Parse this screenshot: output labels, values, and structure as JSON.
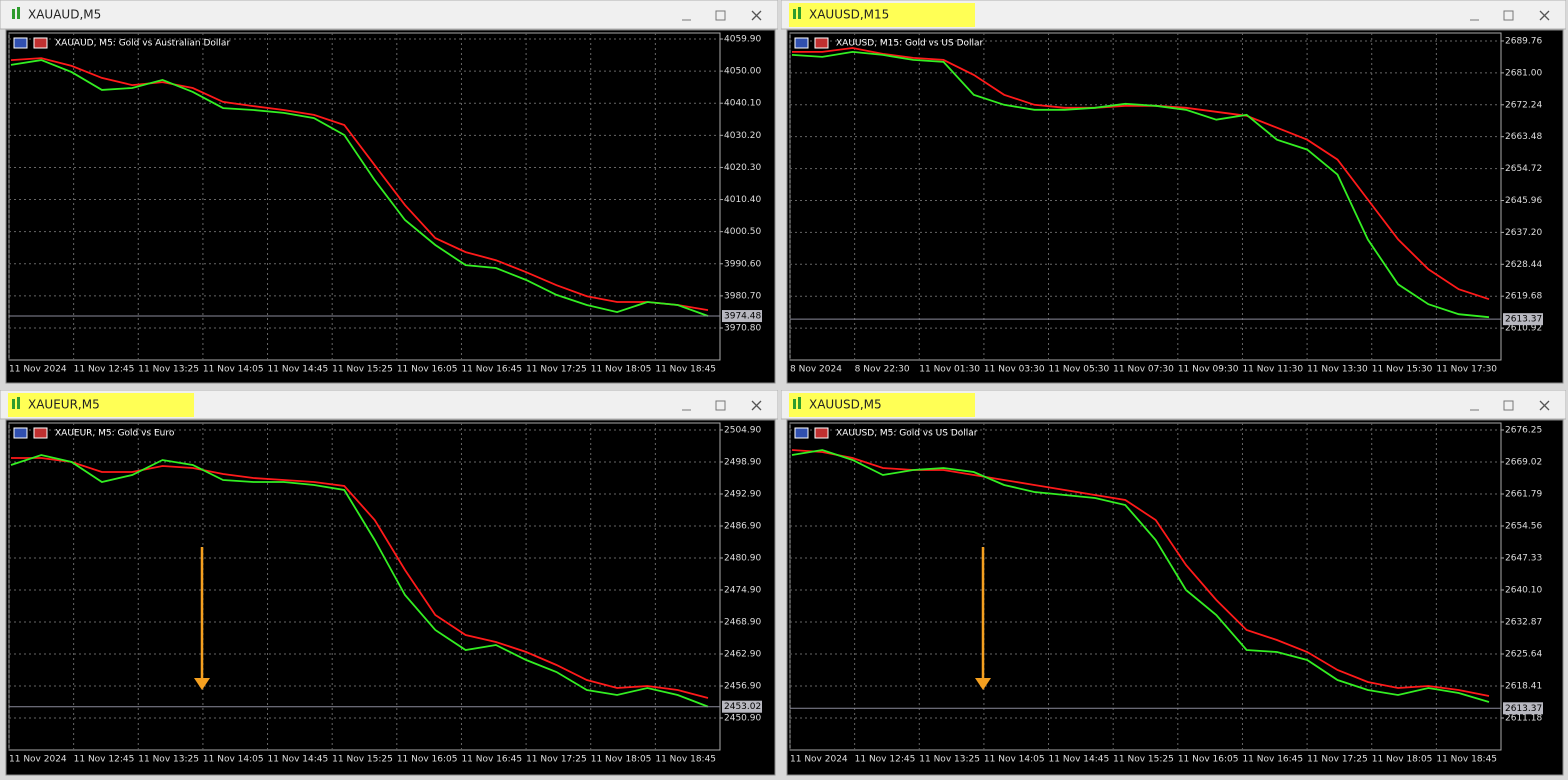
{
  "windows": [
    {
      "title": "XAUAUD,M5",
      "highlighted": false,
      "subtitle": "XAUAUD, M5:  Gold vs Australian Dollar",
      "ylim": [
        3960.93,
        4061.75
      ],
      "yticks": [
        {
          "value": 4059.9,
          "label": "4059.90"
        },
        {
          "value": 4050,
          "label": "4050.00"
        },
        {
          "value": 4040.1,
          "label": "4040.10"
        },
        {
          "value": 4030.2,
          "label": "4030.20"
        },
        {
          "value": 4020.3,
          "label": "4020.30"
        },
        {
          "value": 4010.4,
          "label": "4010.40"
        },
        {
          "value": 4000.5,
          "label": "4000.50"
        },
        {
          "value": 3990.6,
          "label": "3990.60"
        },
        {
          "value": 3980.7,
          "label": "3980.70"
        },
        {
          "value": 3970.8,
          "label": "3970.80"
        }
      ],
      "xticks": [
        "11 Nov 2024",
        "11 Nov 12:45",
        "11 Nov 13:25",
        "11 Nov 14:05",
        "11 Nov 14:45",
        "11 Nov 15:25",
        "11 Nov 16:05",
        "11 Nov 16:45",
        "11 Nov 17:25",
        "11 Nov 18:05",
        "11 Nov 18:45"
      ],
      "last_price": 3974.48,
      "price": [
        4051.9,
        4053.4,
        4049.7,
        4044.2,
        4044.8,
        4047.3,
        4043.6,
        4038.6,
        4038.0,
        4037.1,
        4035.5,
        4030.3,
        4016.4,
        4004.1,
        3996.4,
        3990.2,
        3989.3,
        3985.6,
        3981.0,
        3977.9,
        3975.7,
        3978.8,
        3977.9,
        3974.5
      ],
      "ma": [
        4053.4,
        4054.0,
        4051.6,
        4047.9,
        4045.7,
        4046.6,
        4044.8,
        4040.5,
        4039.2,
        4038.0,
        4036.5,
        4033.4,
        4021.0,
        4008.7,
        3998.5,
        3994.2,
        3991.7,
        3988.0,
        3984.0,
        3980.6,
        3978.8,
        3978.8,
        3977.9,
        3976.3
      ],
      "arrow": false
    },
    {
      "title": "XAUUSD,M15",
      "highlighted": true,
      "subtitle": "XAUUSD, M15:  Gold vs US Dollar",
      "ylim": [
        2602.16,
        2691.95
      ],
      "yticks": [
        {
          "value": 2689.76,
          "label": "2689.76"
        },
        {
          "value": 2681,
          "label": "2681.00"
        },
        {
          "value": 2672.24,
          "label": "2672.24"
        },
        {
          "value": 2663.48,
          "label": "2663.48"
        },
        {
          "value": 2654.72,
          "label": "2654.72"
        },
        {
          "value": 2645.96,
          "label": "2645.96"
        },
        {
          "value": 2637.2,
          "label": "2637.20"
        },
        {
          "value": 2628.44,
          "label": "2628.44"
        },
        {
          "value": 2619.68,
          "label": "2619.68"
        },
        {
          "value": 2610.92,
          "label": "2610.92"
        }
      ],
      "xticks": [
        "8 Nov 2024",
        "8 Nov 22:30",
        "11 Nov 01:30",
        "11 Nov 03:30",
        "11 Nov 05:30",
        "11 Nov 07:30",
        "11 Nov 09:30",
        "11 Nov 11:30",
        "11 Nov 13:30",
        "11 Nov 15:30",
        "11 Nov 17:30"
      ],
      "last_price": 2613.37,
      "price": [
        2685.93,
        2685.38,
        2686.75,
        2685.93,
        2684.56,
        2684.01,
        2674.97,
        2672.24,
        2670.87,
        2670.87,
        2671.42,
        2672.51,
        2671.96,
        2670.87,
        2668.13,
        2669.5,
        2662.65,
        2659.92,
        2653.07,
        2635.28,
        2622.95,
        2617.48,
        2614.74,
        2613.92
      ],
      "ma": [
        2686.75,
        2686.75,
        2687.84,
        2686.2,
        2685.11,
        2684.56,
        2680.45,
        2674.97,
        2672.24,
        2671.42,
        2671.42,
        2671.96,
        2671.96,
        2671.42,
        2670.32,
        2669.22,
        2665.94,
        2662.65,
        2657.18,
        2646.22,
        2635.28,
        2627.06,
        2621.59,
        2618.85
      ],
      "arrow": false
    },
    {
      "title": "XAUEUR,M5",
      "highlighted": true,
      "subtitle": "XAUEUR, M5:  Gold vs Euro",
      "ylim": [
        2444.9,
        2506.21
      ],
      "yticks": [
        {
          "value": 2504.9,
          "label": "2504.90"
        },
        {
          "value": 2498.9,
          "label": "2498.90"
        },
        {
          "value": 2492.9,
          "label": "2492.90"
        },
        {
          "value": 2486.9,
          "label": "2486.90"
        },
        {
          "value": 2480.9,
          "label": "2480.90"
        },
        {
          "value": 2474.9,
          "label": "2474.90"
        },
        {
          "value": 2468.9,
          "label": "2468.90"
        },
        {
          "value": 2462.9,
          "label": "2462.90"
        },
        {
          "value": 2456.9,
          "label": "2456.90"
        },
        {
          "value": 2450.9,
          "label": "2450.90"
        }
      ],
      "xticks": [
        "11 Nov 2024",
        "11 Nov 12:45",
        "11 Nov 13:25",
        "11 Nov 14:05",
        "11 Nov 14:45",
        "11 Nov 15:25",
        "11 Nov 16:05",
        "11 Nov 16:45",
        "11 Nov 17:25",
        "11 Nov 18:05",
        "11 Nov 18:45"
      ],
      "last_price": 2453.02,
      "price": [
        2498.34,
        2500.21,
        2498.9,
        2495.15,
        2496.46,
        2499.28,
        2498.34,
        2495.53,
        2495.15,
        2495.15,
        2494.59,
        2493.65,
        2484.28,
        2473.96,
        2467.4,
        2463.65,
        2464.59,
        2461.78,
        2459.53,
        2456.15,
        2455.21,
        2456.53,
        2455.21,
        2453.03
      ],
      "ma": [
        2499.65,
        2499.65,
        2498.9,
        2497.03,
        2497.03,
        2498.15,
        2497.78,
        2496.65,
        2495.9,
        2495.53,
        2495.15,
        2494.4,
        2488.03,
        2478.65,
        2470.21,
        2466.46,
        2465.15,
        2463.28,
        2460.84,
        2458.03,
        2456.53,
        2456.9,
        2456.15,
        2454.65
      ],
      "arrow": true
    },
    {
      "title": "XAUUSD,M5",
      "highlighted": true,
      "subtitle": "XAUUSD, M5:  Gold vs US Dollar",
      "ylim": [
        2603.95,
        2677.83
      ],
      "yticks": [
        {
          "value": 2676.25,
          "label": "2676.25"
        },
        {
          "value": 2669.02,
          "label": "2669.02"
        },
        {
          "value": 2661.79,
          "label": "2661.79"
        },
        {
          "value": 2654.56,
          "label": "2654.56"
        },
        {
          "value": 2647.33,
          "label": "2647.33"
        },
        {
          "value": 2640.1,
          "label": "2640.10"
        },
        {
          "value": 2632.87,
          "label": "2632.87"
        },
        {
          "value": 2625.64,
          "label": "2625.64"
        },
        {
          "value": 2618.41,
          "label": "2618.41"
        },
        {
          "value": 2611.18,
          "label": "2611.18"
        }
      ],
      "xticks": [
        "11 Nov 2024",
        "11 Nov 12:45",
        "11 Nov 13:25",
        "11 Nov 14:05",
        "11 Nov 14:45",
        "11 Nov 15:25",
        "11 Nov 16:05",
        "11 Nov 16:45",
        "11 Nov 17:25",
        "11 Nov 18:05",
        "11 Nov 18:45"
      ],
      "last_price": 2613.37,
      "price": [
        2670.6,
        2671.73,
        2669.47,
        2666.08,
        2667.21,
        2667.66,
        2666.76,
        2663.83,
        2662.24,
        2661.57,
        2660.89,
        2659.31,
        2651.4,
        2640.11,
        2634.46,
        2626.55,
        2626.1,
        2624.29,
        2619.77,
        2617.51,
        2616.38,
        2617.96,
        2616.83,
        2614.8
      ],
      "ma": [
        2671.73,
        2671.28,
        2669.92,
        2667.67,
        2667.21,
        2667.21,
        2666.08,
        2664.95,
        2663.83,
        2662.7,
        2661.57,
        2660.44,
        2655.92,
        2645.75,
        2637.84,
        2631.07,
        2628.81,
        2626.1,
        2622.03,
        2619.32,
        2617.96,
        2618.41,
        2617.51,
        2616.15
      ],
      "arrow": true
    }
  ],
  "price_color": "#33ee22",
  "ma_color": "#ff1a1a"
}
